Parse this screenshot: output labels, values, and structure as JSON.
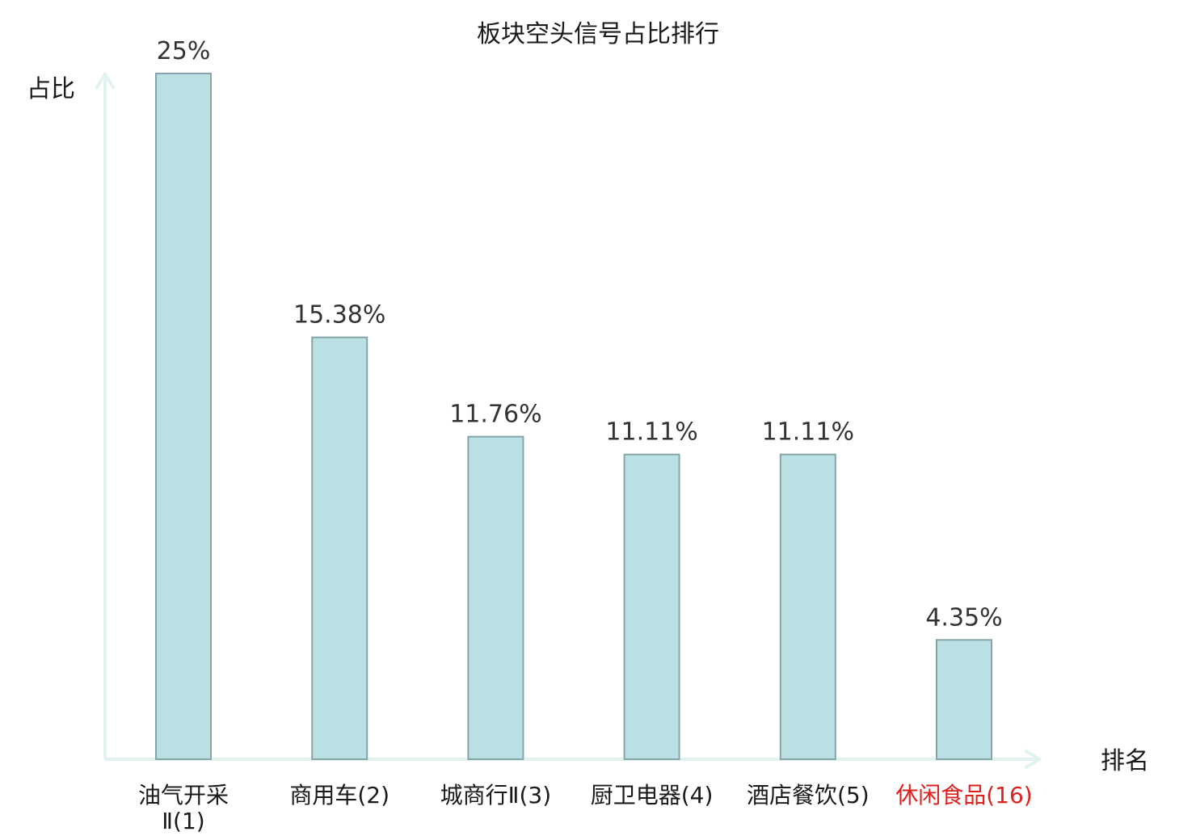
{
  "chart_data": {
    "type": "bar",
    "title": "板块空头信号占比排行",
    "ylabel": "占比",
    "xlabel": "排名",
    "categories": [
      [
        "油气开采",
        "Ⅱ(1)"
      ],
      [
        "商用车(2)"
      ],
      [
        "城商行Ⅱ(3)"
      ],
      [
        "厨卫电器(4)"
      ],
      [
        "酒店餐饮(5)"
      ],
      [
        "休闲食品(16)"
      ]
    ],
    "values": [
      25,
      15.38,
      11.76,
      11.11,
      11.11,
      4.35
    ],
    "value_labels": [
      "25%",
      "15.38%",
      "11.76%",
      "11.11%",
      "11.11%",
      "4.35%"
    ],
    "highlight_index": 5,
    "ylim": [
      0,
      25
    ],
    "grid": false,
    "colors": {
      "bar_fill": "#bbe0e3",
      "bar_stroke": "#85a5a8",
      "axis": "#e1f3f1",
      "text": "#1a1a1a",
      "value_label": "#333333",
      "highlight": "#e0201c"
    }
  }
}
